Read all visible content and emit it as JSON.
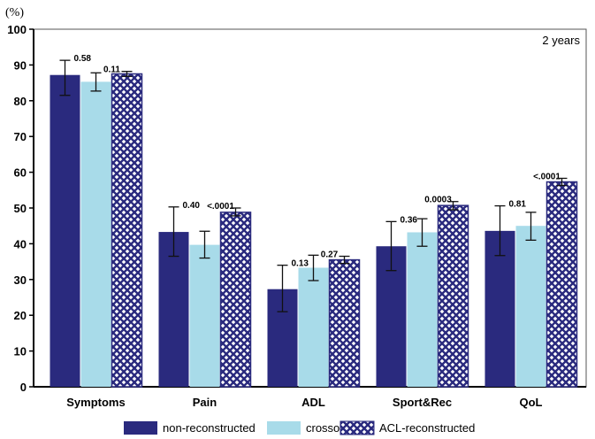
{
  "chart_data": {
    "type": "bar",
    "ylabel": "(%)",
    "annotation": "2 years",
    "ylim": [
      0,
      100
    ],
    "yticks": [
      0,
      10,
      20,
      30,
      40,
      50,
      60,
      70,
      80,
      90,
      100
    ],
    "categories": [
      "Symptoms",
      "Pain",
      "ADL",
      "Sport&Rec",
      "QoL"
    ],
    "series": [
      {
        "name": "non-reconstructed",
        "color": "#2a2a7e",
        "fill": "solid",
        "values": [
          87.2,
          43.3,
          27.3,
          39.3,
          43.6
        ],
        "err_low": [
          81.5,
          36.5,
          21,
          32.5,
          36.7
        ],
        "err_high": [
          91.3,
          50.3,
          34,
          46.2,
          50.6
        ]
      },
      {
        "name": "crossover",
        "color": "#a8dbe9",
        "fill": "solid",
        "values": [
          85.3,
          39.7,
          33.3,
          43.2,
          45
        ],
        "err_low": [
          82.7,
          36,
          29.7,
          39.3,
          41
        ],
        "err_high": [
          87.8,
          43.5,
          36.8,
          47,
          48.8
        ]
      },
      {
        "name": "ACL-reconstructed",
        "color": "#2a2a7e",
        "fill": "hatch",
        "values": [
          87.5,
          48.8,
          35.5,
          50.7,
          57.3
        ],
        "err_low": [
          86.8,
          47.8,
          34.5,
          49.5,
          56.3
        ],
        "err_high": [
          88.2,
          50,
          36.5,
          51.8,
          58.3
        ]
      }
    ],
    "p_values": [
      {
        "crossover_vs_non": "0.58",
        "acl_vs_non": "0.11"
      },
      {
        "crossover_vs_non": "0.40",
        "acl_vs_non": "<.0001"
      },
      {
        "crossover_vs_non": "0.13",
        "acl_vs_non": "0.27"
      },
      {
        "crossover_vs_non": "0.36",
        "acl_vs_non": "0.0003"
      },
      {
        "crossover_vs_non": "0.81",
        "acl_vs_non": "<.0001"
      }
    ],
    "legend_position": "bottom",
    "grid": false
  }
}
